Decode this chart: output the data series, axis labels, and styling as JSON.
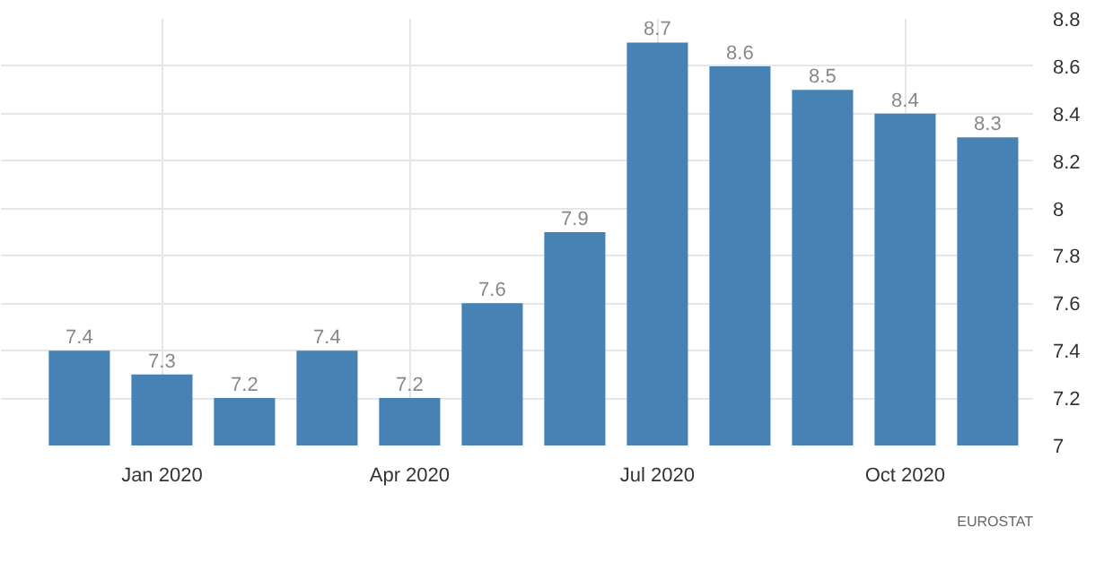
{
  "chart_data": {
    "type": "bar",
    "categories": [
      null,
      "Jan 2020",
      null,
      null,
      "Apr 2020",
      null,
      null,
      "Jul 2020",
      null,
      null,
      "Oct 2020",
      null
    ],
    "values": [
      7.4,
      7.3,
      7.2,
      7.4,
      7.2,
      7.6,
      7.9,
      8.7,
      8.6,
      8.5,
      8.4,
      8.3
    ],
    "color": "#4682b4",
    "ylim": [
      7,
      8.8
    ],
    "yticks": [
      7,
      {
        "value": 7.2,
        "label": "7.2"
      },
      {
        "value": 7.4,
        "label": "7.4"
      },
      {
        "value": 7.6,
        "label": "7.6"
      },
      {
        "value": 7.8,
        "label": "7.8"
      },
      8,
      {
        "value": 8.2,
        "label": "8.2"
      },
      {
        "value": 8.4,
        "label": "8.4"
      },
      {
        "value": 8.6,
        "label": "8.6"
      },
      {
        "value": 8.8,
        "label": "8.8"
      }
    ],
    "grid": true,
    "data_labels": true,
    "annotations": [
      "EUROSTAT"
    ]
  }
}
